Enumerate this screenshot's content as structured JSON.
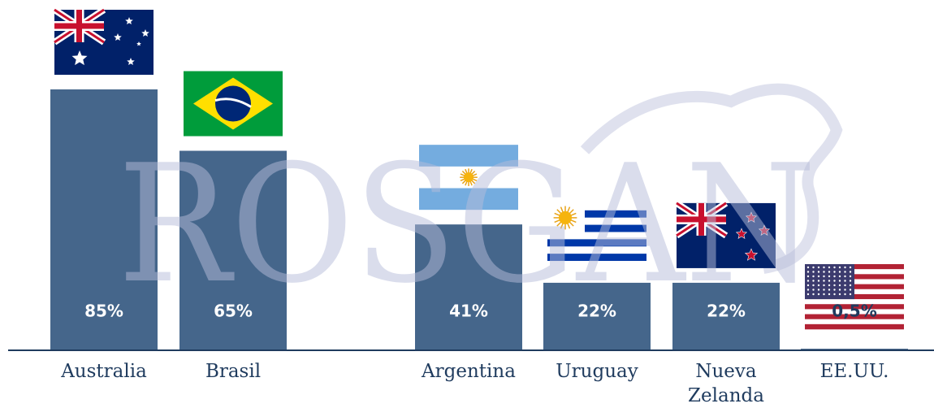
{
  "chart_data": {
    "type": "bar",
    "watermark": "ROSGAN",
    "categories": [
      "Australia",
      "Brasil",
      "Argentina",
      "Uruguay",
      "Nueva Zelanda",
      "EE.UU."
    ],
    "values": [
      85,
      65,
      41,
      22,
      22,
      0.5
    ],
    "value_labels": [
      "85%",
      "65%",
      "41%",
      "22%",
      "22%",
      "0,5%"
    ],
    "color": "#45668b"
  }
}
